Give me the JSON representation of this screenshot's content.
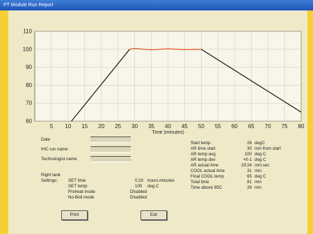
{
  "window": {
    "title": "PT Module Run Report"
  },
  "chart_data": {
    "type": "line",
    "title": "",
    "xlabel": "Time (minutes)",
    "ylabel": "",
    "xlim": [
      0,
      80
    ],
    "ylim": [
      60,
      110
    ],
    "x_ticks": [
      5,
      10,
      15,
      20,
      25,
      30,
      35,
      40,
      45,
      50,
      55,
      60,
      65,
      70,
      75,
      80
    ],
    "y_ticks": [
      60,
      70,
      80,
      90,
      100,
      110
    ],
    "grid": true,
    "series": [
      {
        "name": "",
        "color": "#222222",
        "x": [
          11,
          28.5
        ],
        "y": [
          60,
          100
        ]
      },
      {
        "name": "",
        "color": "#e05a2a",
        "x": [
          28.5,
          30,
          35,
          40,
          45,
          50
        ],
        "y": [
          100,
          100.5,
          99.7,
          100.3,
          99.8,
          100
        ]
      },
      {
        "name": "",
        "color": "#222222",
        "x": [
          50,
          80
        ],
        "y": [
          100,
          65
        ]
      }
    ]
  },
  "form": {
    "date_label": "Date",
    "ihc_run_name_label": "IHC run name",
    "technologist_name_label": "Technologist name"
  },
  "settings": {
    "tank_label": "Right tank",
    "settings_label": "Settings:",
    "rows": [
      {
        "label": "SET time",
        "value": "0:20",
        "unit": "hours:minutes"
      },
      {
        "label": "SET temp",
        "value": "100",
        "unit": "deg C"
      },
      {
        "label": "Preheat mode",
        "value": "Disabled",
        "unit": ""
      },
      {
        "label": "No-Boil mode",
        "value": "Disabled",
        "unit": ""
      }
    ]
  },
  "stats": [
    {
      "label": "Start temp",
      "value": "26",
      "unit": "degC"
    },
    {
      "label": "AR time start",
      "value": "30",
      "unit": "min from start"
    },
    {
      "label": "AR temp avg",
      "value": "100",
      "unit": "deg C"
    },
    {
      "label": "AR temp dev",
      "value": "+0-1",
      "unit": "deg C"
    },
    {
      "label": "AR actual time",
      "value": "19:24",
      "unit": "min:sec"
    },
    {
      "label": "COOL actual time",
      "value": "31",
      "unit": "min"
    },
    {
      "label": "Final COOL temp",
      "value": "65",
      "unit": "deg C"
    },
    {
      "label": "Total time",
      "value": "81",
      "unit": "min"
    },
    {
      "label": "Time above 95C",
      "value": "26",
      "unit": "min"
    }
  ],
  "buttons": {
    "print": "Print",
    "exit": "Exit"
  }
}
